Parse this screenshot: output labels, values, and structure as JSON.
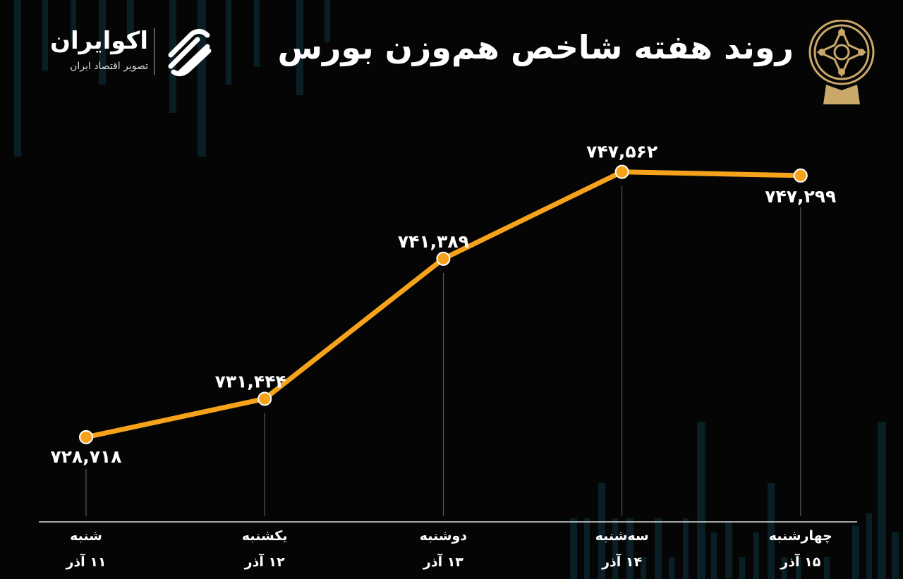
{
  "header": {
    "title": "روند هفته شاخص هم‌وزن بورس",
    "logo_name": "اکوایران",
    "logo_tagline": "تصویر اقتصاد ایران",
    "seal_icon": "tehran-stock-exchange-seal"
  },
  "colors": {
    "line": "#f7a21b",
    "background": "#050505",
    "seal": "#c9a86a",
    "bars": "#0d2a33"
  },
  "chart_data": {
    "type": "line",
    "title": "روند هفته شاخص هم‌وزن بورس",
    "xlabel": "",
    "ylabel": "",
    "categories": [
      {
        "day": "شنبه",
        "date": "۱۱ آذر"
      },
      {
        "day": "یکشنبه",
        "date": "۱۲ آذر"
      },
      {
        "day": "دوشنبه",
        "date": "۱۳ آذر"
      },
      {
        "day": "سه‌شنبه",
        "date": "۱۴ آذر"
      },
      {
        "day": "چهارشنبه",
        "date": "۱۵ آذر"
      }
    ],
    "series": [
      {
        "name": "شاخص هم‌وزن",
        "values": [
          728718,
          731444,
          741389,
          747562,
          747299
        ],
        "labels": [
          "۷۲۸,۷۱۸",
          "۷۳۱,۴۴۴",
          "۷۴۱,۳۸۹",
          "۷۴۷,۵۶۲",
          "۷۴۷,۲۹۹"
        ]
      }
    ],
    "ylim": [
      722700,
      750000
    ],
    "grid": false,
    "legend": "none"
  }
}
